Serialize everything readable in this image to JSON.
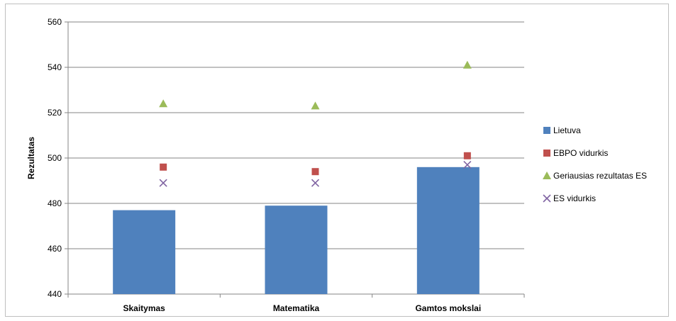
{
  "chart_data": {
    "type": "bar",
    "title": "",
    "xlabel": "",
    "ylabel": "Rezultatas",
    "ylim": [
      440,
      560
    ],
    "yticks": [
      440,
      460,
      480,
      500,
      520,
      540,
      560
    ],
    "grid": true,
    "legend_position": "right",
    "categories": [
      "Skaitymas",
      "Matematika",
      "Gamtos mokslai"
    ],
    "series": [
      {
        "name": "Lietuva",
        "kind": "bar",
        "marker": "square",
        "color": "#4f81bd",
        "values": [
          477,
          479,
          496
        ]
      },
      {
        "name": "EBPO vidurkis",
        "kind": "marker",
        "marker": "square",
        "color": "#c0504d",
        "values": [
          496,
          494,
          501
        ]
      },
      {
        "name": "Geriausias rezultatas  ES",
        "kind": "marker",
        "marker": "triangle",
        "color": "#9bbb59",
        "values": [
          524,
          523,
          541
        ]
      },
      {
        "name": "ES vidurkis",
        "kind": "marker",
        "marker": "x",
        "color": "#8064a2",
        "values": [
          489,
          489,
          497
        ]
      }
    ]
  }
}
